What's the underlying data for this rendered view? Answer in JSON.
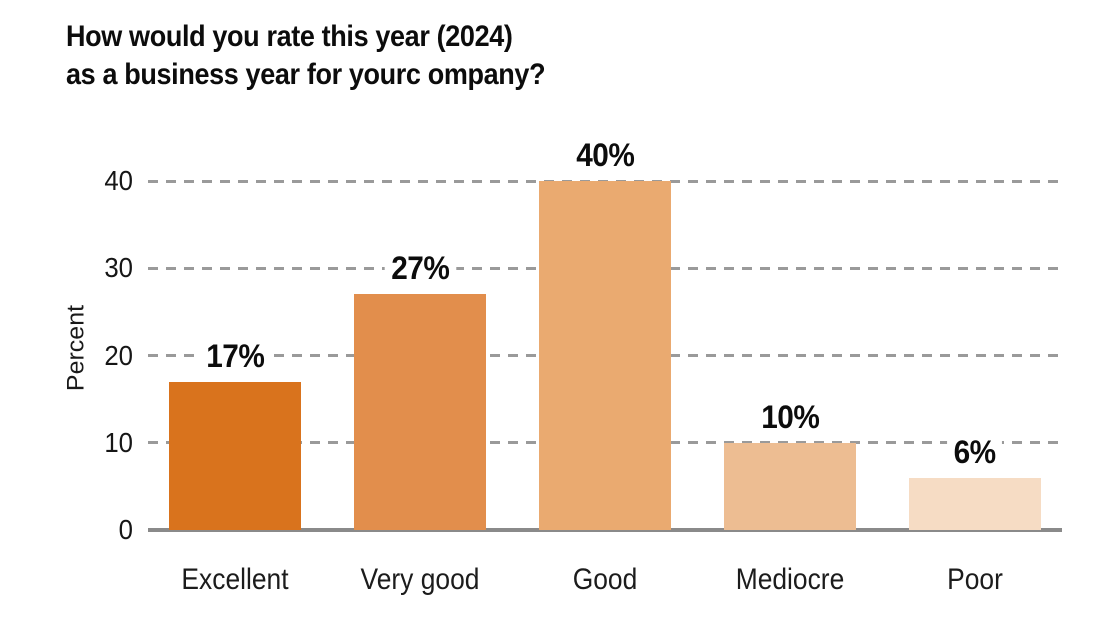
{
  "title": {
    "line1": "How would you rate this year (2024)",
    "line2": "as a business year for yourc ompany?"
  },
  "chart_data": {
    "type": "bar",
    "title": "How would you rate this year (2024) as a business year for yourc ompany?",
    "categories": [
      "Excellent",
      "Very good",
      "Good",
      "Mediocre",
      "Poor"
    ],
    "values": [
      17,
      27,
      40,
      10,
      6
    ],
    "value_labels": [
      "17%",
      "27%",
      "40%",
      "10%",
      "6%"
    ],
    "xlabel": "",
    "ylabel": "Percent",
    "ylim": [
      0,
      40
    ],
    "yticks": [
      0,
      10,
      20,
      30,
      40
    ],
    "grid": "horizontal-dashed",
    "legend": "none",
    "bar_colors": [
      "#D9731D",
      "#E28E4C",
      "#EAAA70",
      "#EDBD92",
      "#F6DCC4"
    ],
    "colors": {
      "gridline": "#9A9A9A",
      "axis_line": "#8A8A8A",
      "title_text": "#0C0C0C",
      "tick_text": "#161616",
      "category_text": "#1C1C1C",
      "value_text": "#0C0C0C",
      "background": "#FFFFFF"
    }
  }
}
